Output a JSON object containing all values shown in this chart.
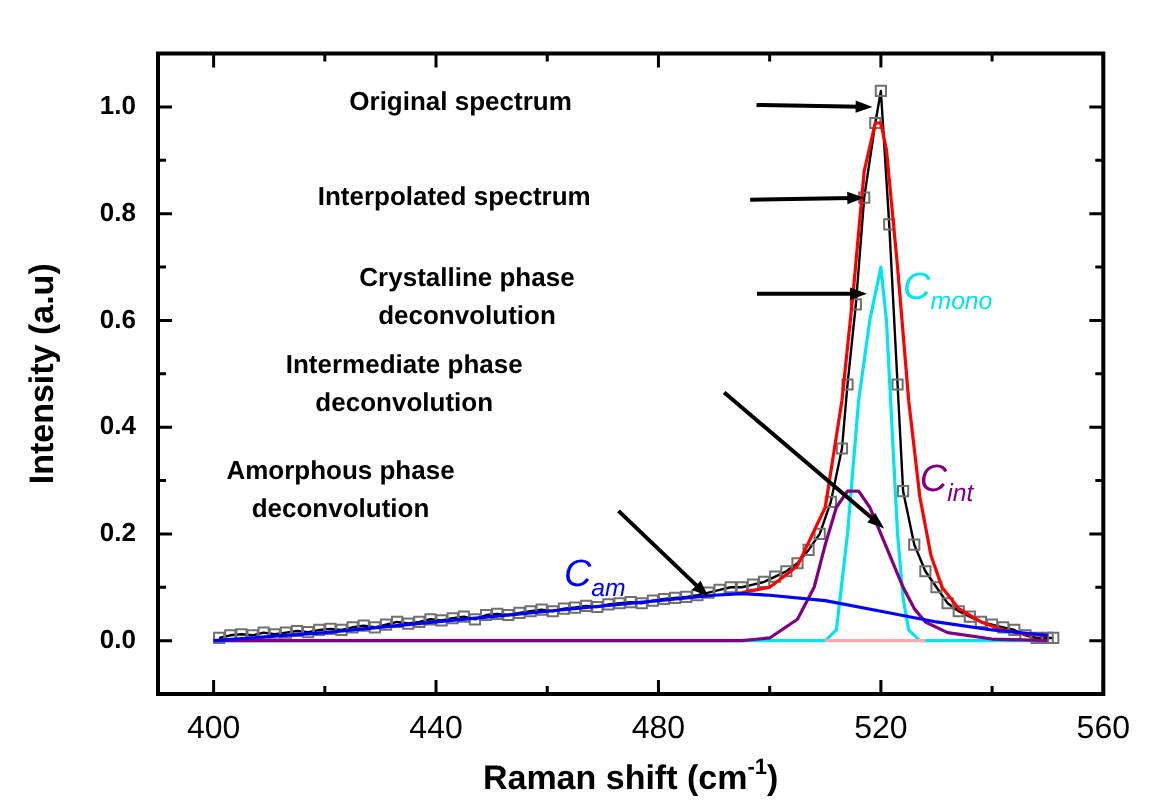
{
  "chart_data": {
    "type": "line",
    "xlabel": "Raman shift (cm$^{-1}$)",
    "ylabel": "Intensity (a.u)",
    "xlim": [
      390,
      560
    ],
    "ylim": [
      -0.1,
      1.1
    ],
    "xticks": [
      400,
      {
        "value": 420,
        "label": null
      },
      440,
      {
        "value": 460,
        "label": null
      },
      480,
      {
        "value": 500,
        "label": null
      },
      520,
      {
        "value": 540,
        "label": null
      },
      560
    ],
    "yticks": [
      {
        "value": 0,
        "label": "0.0"
      },
      {
        "value": 0.1,
        "label": null
      },
      {
        "value": 0.2,
        "label": "0.2"
      },
      {
        "value": 0.3,
        "label": null
      },
      {
        "value": 0.4,
        "label": "0.4"
      },
      {
        "value": 0.5,
        "label": null
      },
      {
        "value": 0.6,
        "label": "0.6"
      },
      {
        "value": 0.7,
        "label": null
      },
      {
        "value": 0.8,
        "label": "0.8"
      },
      {
        "value": 0.9,
        "label": null
      },
      {
        "value": 1.0,
        "label": "1.0"
      }
    ],
    "grid": false,
    "legend": false,
    "series": [
      {
        "color": "#000000",
        "marker": "square",
        "x": [
          401,
          403,
          405,
          407,
          409,
          411,
          413,
          415,
          417,
          419,
          421,
          423,
          425,
          427,
          429,
          431,
          433,
          435,
          437,
          439,
          441,
          443,
          445,
          447,
          449,
          451,
          453,
          455,
          457,
          459,
          461,
          463,
          465,
          467,
          469,
          471,
          473,
          475,
          477,
          479,
          481,
          483,
          485,
          487,
          489,
          491,
          493,
          495,
          497,
          499,
          501,
          503,
          505,
          507,
          509,
          511,
          513,
          514,
          515.5,
          517,
          519,
          520,
          521.5,
          523,
          524,
          526,
          528,
          530,
          532,
          534,
          536,
          538,
          540,
          542,
          544,
          546,
          548,
          550,
          551
        ],
        "values": [
          0.005,
          0.01,
          0.012,
          0.01,
          0.015,
          0.012,
          0.015,
          0.018,
          0.016,
          0.02,
          0.022,
          0.02,
          0.025,
          0.028,
          0.025,
          0.03,
          0.035,
          0.032,
          0.035,
          0.04,
          0.038,
          0.042,
          0.045,
          0.04,
          0.048,
          0.05,
          0.048,
          0.052,
          0.055,
          0.058,
          0.055,
          0.06,
          0.062,
          0.065,
          0.063,
          0.068,
          0.07,
          0.072,
          0.07,
          0.075,
          0.078,
          0.08,
          0.082,
          0.085,
          0.09,
          0.095,
          0.1,
          0.1,
          0.105,
          0.11,
          0.12,
          0.13,
          0.145,
          0.17,
          0.2,
          0.26,
          0.36,
          0.48,
          0.63,
          0.83,
          0.97,
          1.03,
          0.78,
          0.48,
          0.28,
          0.18,
          0.13,
          0.1,
          0.07,
          0.055,
          0.045,
          0.035,
          0.03,
          0.025,
          0.02,
          0.01,
          0.005,
          0.005,
          0.005
        ]
      },
      {
        "color": "#ff0000",
        "marker": "none",
        "x": [
          495,
          500,
          505,
          510,
          513,
          515,
          517,
          519,
          520,
          521,
          523,
          525,
          527,
          529,
          531,
          534,
          538,
          542,
          546,
          550
        ],
        "values": [
          0.09,
          0.1,
          0.14,
          0.25,
          0.45,
          0.65,
          0.88,
          0.97,
          0.97,
          0.92,
          0.7,
          0.45,
          0.27,
          0.16,
          0.1,
          0.06,
          0.035,
          0.02,
          0.012,
          0.01
        ]
      },
      {
        "name": "C$_{mono}$",
        "color": "#00e5ee",
        "marker": "none",
        "x": [
          400,
          505,
          510,
          512,
          514,
          516,
          518,
          520,
          521,
          522,
          523,
          524,
          525,
          527,
          535,
          550
        ],
        "values": [
          0,
          0,
          0,
          0.02,
          0.2,
          0.45,
          0.6,
          0.7,
          0.6,
          0.4,
          0.2,
          0.08,
          0.02,
          0,
          0,
          0
        ]
      },
      {
        "name": "C$_{int}$",
        "color": "#800080",
        "marker": "none",
        "x": [
          400,
          495,
          500,
          505,
          508,
          510,
          512,
          514,
          516,
          518,
          520,
          522,
          524,
          526,
          528,
          532,
          540,
          550
        ],
        "values": [
          0,
          0,
          0.005,
          0.04,
          0.1,
          0.18,
          0.25,
          0.28,
          0.28,
          0.25,
          0.2,
          0.15,
          0.1,
          0.06,
          0.035,
          0.015,
          0.003,
          0
        ]
      },
      {
        "name": "C$_{am}$",
        "color": "#0000ff",
        "marker": "none",
        "x": [
          400,
          420,
          440,
          460,
          480,
          490,
          495,
          500,
          510,
          520,
          530,
          540,
          550
        ],
        "values": [
          0,
          0.015,
          0.035,
          0.055,
          0.075,
          0.085,
          0.088,
          0.085,
          0.075,
          0.055,
          0.035,
          0.02,
          0.01
        ]
      },
      {
        "color": "#ffaaaa",
        "marker": "none",
        "x": [
          510,
          528
        ],
        "values": [
          0,
          0
        ]
      }
    ],
    "annotations": [
      "Original spectrum",
      "Interpolated spectrum",
      "Crystalline phase\ndeconvolution",
      "Intermediate phase\ndeconvolution",
      "Amorphous phase\ndeconvolution"
    ]
  }
}
